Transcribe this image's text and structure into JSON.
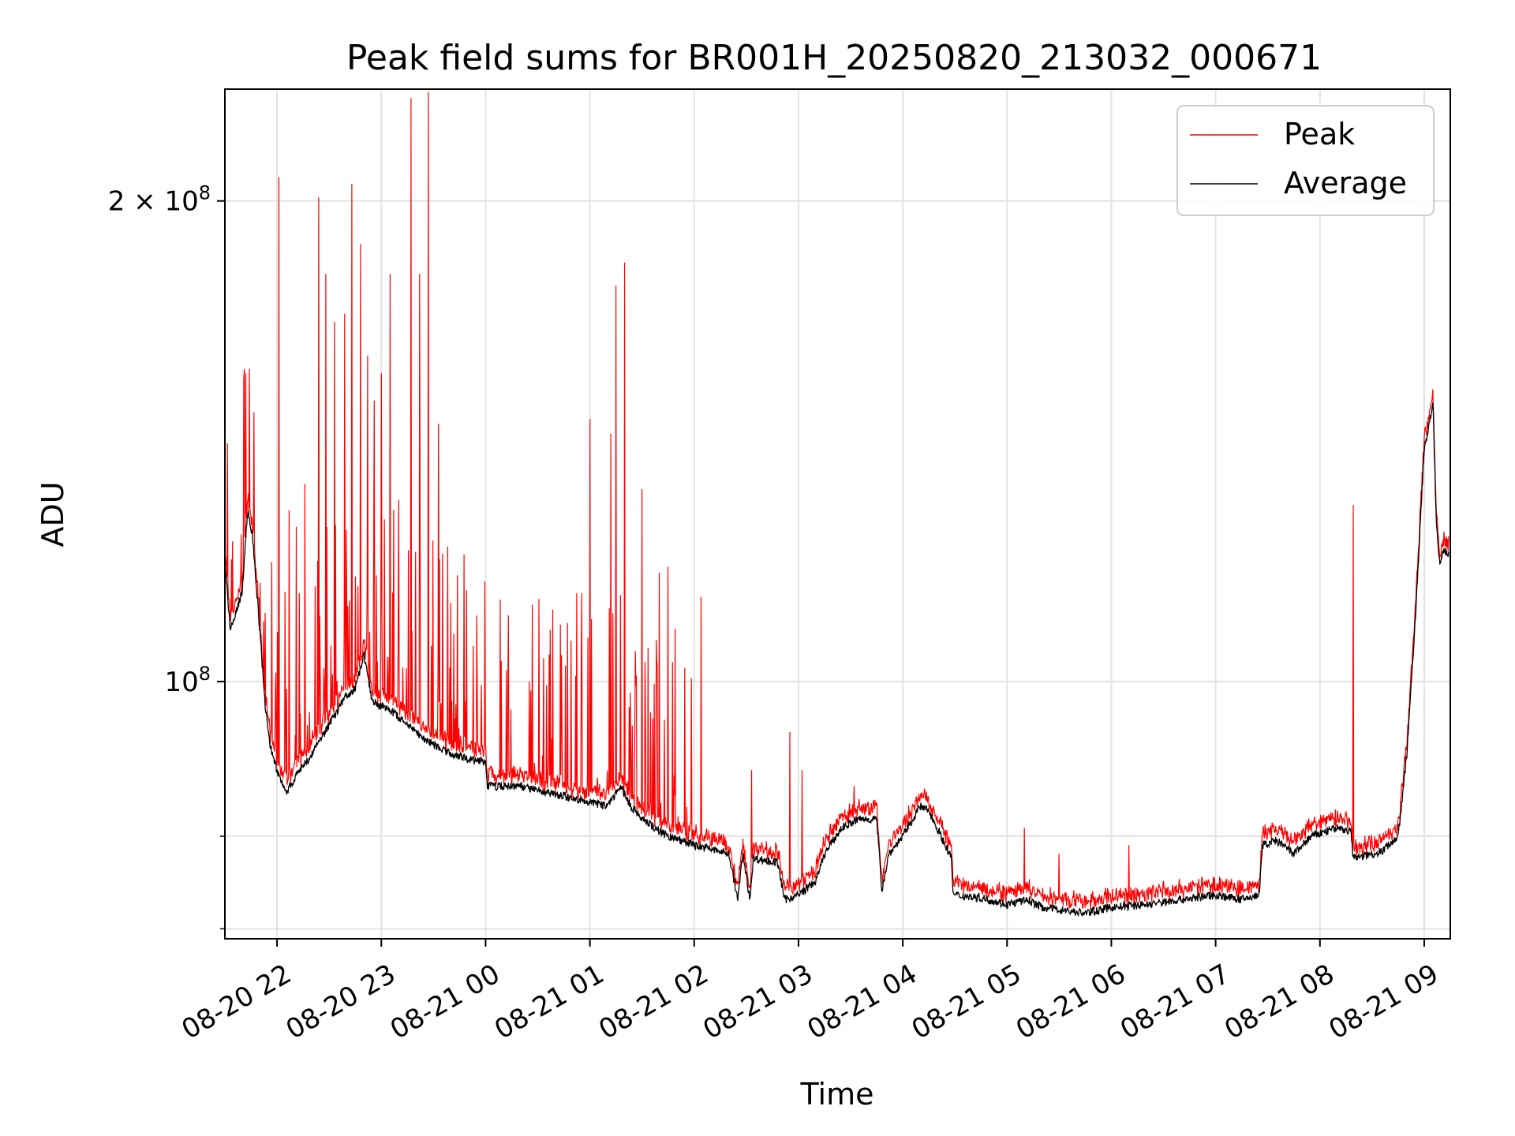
{
  "chart_data": {
    "type": "line",
    "title": "Peak field sums for BR001H_20250820_213032_000671",
    "xlabel": "Time",
    "ylabel": "ADU",
    "x_scale": "time",
    "y_scale": "log",
    "ylim": [
      69000000,
      235000000
    ],
    "xlim": [
      "2025-08-20 21:30",
      "2025-08-21 09:15"
    ],
    "x_ticks": [
      {
        "t": "2025-08-20 22:00",
        "label": "08-20 22"
      },
      {
        "t": "2025-08-20 23:00",
        "label": "08-20 23"
      },
      {
        "t": "2025-08-21 00:00",
        "label": "08-21 00"
      },
      {
        "t": "2025-08-21 01:00",
        "label": "08-21 01"
      },
      {
        "t": "2025-08-21 02:00",
        "label": "08-21 02"
      },
      {
        "t": "2025-08-21 03:00",
        "label": "08-21 03"
      },
      {
        "t": "2025-08-21 04:00",
        "label": "08-21 04"
      },
      {
        "t": "2025-08-21 05:00",
        "label": "08-21 05"
      },
      {
        "t": "2025-08-21 06:00",
        "label": "08-21 06"
      },
      {
        "t": "2025-08-21 07:00",
        "label": "08-21 07"
      },
      {
        "t": "2025-08-21 08:00",
        "label": "08-21 08"
      },
      {
        "t": "2025-08-21 09:00",
        "label": "08-21 09"
      }
    ],
    "y_ticks_major": [
      {
        "v": 100000000,
        "base": "10",
        "exp": "8",
        "coef": ""
      },
      {
        "v": 200000000,
        "base": "10",
        "exp": "8",
        "coef": "2 × "
      }
    ],
    "y_ticks_minor": [
      70000000,
      80000000
    ],
    "grid": true,
    "legend": {
      "position": "top-right",
      "entries": [
        "Peak",
        "Average"
      ]
    },
    "colors": {
      "Peak": "#ff0000",
      "Average": "#000000"
    },
    "series": [
      {
        "name": "Average",
        "color": "#000000",
        "points": [
          [
            "2025-08-20 21:30",
            119000000
          ],
          [
            "2025-08-20 21:33",
            108000000
          ],
          [
            "2025-08-20 21:36",
            110000000
          ],
          [
            "2025-08-20 21:40",
            114000000
          ],
          [
            "2025-08-20 21:43",
            128000000
          ],
          [
            "2025-08-20 21:46",
            123000000
          ],
          [
            "2025-08-20 21:50",
            108000000
          ],
          [
            "2025-08-20 21:53",
            97000000
          ],
          [
            "2025-08-20 21:56",
            91000000
          ],
          [
            "2025-08-20 22:00",
            88000000
          ],
          [
            "2025-08-20 22:05",
            85000000
          ],
          [
            "2025-08-20 22:10",
            87000000
          ],
          [
            "2025-08-20 22:20",
            90000000
          ],
          [
            "2025-08-20 22:30",
            94000000
          ],
          [
            "2025-08-20 22:40",
            98000000
          ],
          [
            "2025-08-20 22:45",
            99000000
          ],
          [
            "2025-08-20 22:50",
            104000000
          ],
          [
            "2025-08-20 22:55",
            97000000
          ],
          [
            "2025-08-20 23:05",
            96000000
          ],
          [
            "2025-08-20 23:15",
            94000000
          ],
          [
            "2025-08-20 23:25",
            92000000
          ],
          [
            "2025-08-20 23:40",
            90000000
          ],
          [
            "2025-08-21 00:00",
            89000000
          ],
          [
            "2025-08-21 00:01",
            86000000
          ],
          [
            "2025-08-21 00:20",
            86000000
          ],
          [
            "2025-08-21 00:40",
            85000000
          ],
          [
            "2025-08-21 01:00",
            84000000
          ],
          [
            "2025-08-21 01:10",
            83500000
          ],
          [
            "2025-08-21 01:18",
            86000000
          ],
          [
            "2025-08-21 01:22",
            84000000
          ],
          [
            "2025-08-21 01:30",
            82000000
          ],
          [
            "2025-08-21 01:45",
            80000000
          ],
          [
            "2025-08-21 02:00",
            79000000
          ],
          [
            "2025-08-21 02:20",
            78000000
          ],
          [
            "2025-08-21 02:25",
            73000000
          ],
          [
            "2025-08-21 02:28",
            78000000
          ],
          [
            "2025-08-21 02:32",
            73000000
          ],
          [
            "2025-08-21 02:34",
            77500000
          ],
          [
            "2025-08-21 02:48",
            77000000
          ],
          [
            "2025-08-21 02:52",
            73000000
          ],
          [
            "2025-08-21 03:00",
            73500000
          ],
          [
            "2025-08-21 03:10",
            75000000
          ],
          [
            "2025-08-21 03:15",
            78000000
          ],
          [
            "2025-08-21 03:25",
            81000000
          ],
          [
            "2025-08-21 03:35",
            82000000
          ],
          [
            "2025-08-21 03:45",
            82000000
          ],
          [
            "2025-08-21 03:48",
            74000000
          ],
          [
            "2025-08-21 03:52",
            78000000
          ],
          [
            "2025-08-21 04:00",
            80000000
          ],
          [
            "2025-08-21 04:10",
            83500000
          ],
          [
            "2025-08-21 04:15",
            83000000
          ],
          [
            "2025-08-21 04:22",
            80000000
          ],
          [
            "2025-08-21 04:28",
            77500000
          ],
          [
            "2025-08-21 04:29",
            73500000
          ],
          [
            "2025-08-21 04:45",
            73200000
          ],
          [
            "2025-08-21 05:00",
            72500000
          ],
          [
            "2025-08-21 05:12",
            73000000
          ],
          [
            "2025-08-21 05:20",
            72200000
          ],
          [
            "2025-08-21 05:45",
            71600000
          ],
          [
            "2025-08-21 06:00",
            72200000
          ],
          [
            "2025-08-21 06:20",
            72500000
          ],
          [
            "2025-08-21 06:40",
            73000000
          ],
          [
            "2025-08-21 07:00",
            73500000
          ],
          [
            "2025-08-21 07:15",
            73000000
          ],
          [
            "2025-08-21 07:25",
            73500000
          ],
          [
            "2025-08-21 07:27",
            79000000
          ],
          [
            "2025-08-21 07:35",
            79500000
          ],
          [
            "2025-08-21 07:45",
            78000000
          ],
          [
            "2025-08-21 07:55",
            80000000
          ],
          [
            "2025-08-21 08:10",
            81000000
          ],
          [
            "2025-08-21 08:18",
            80500000
          ],
          [
            "2025-08-21 08:19",
            77500000
          ],
          [
            "2025-08-21 08:35",
            78200000
          ],
          [
            "2025-08-21 08:45",
            80000000
          ],
          [
            "2025-08-21 08:50",
            90000000
          ],
          [
            "2025-08-21 08:55",
            110000000
          ],
          [
            "2025-08-21 09:00",
            140000000
          ],
          [
            "2025-08-21 09:03",
            145000000
          ],
          [
            "2025-08-21 09:05",
            150000000
          ],
          [
            "2025-08-21 09:07",
            125000000
          ],
          [
            "2025-08-21 09:09",
            118000000
          ],
          [
            "2025-08-21 09:11",
            121000000
          ],
          [
            "2025-08-21 09:14",
            120000000
          ]
        ]
      },
      {
        "name": "Peak",
        "color": "#ff0000",
        "spikes": [
          [
            "2025-08-20 21:44",
            157000000
          ],
          [
            "2025-08-20 22:01",
            207000000
          ],
          [
            "2025-08-20 22:07",
            128000000
          ],
          [
            "2025-08-20 22:11",
            125000000
          ],
          [
            "2025-08-20 22:16",
            133000000
          ],
          [
            "2025-08-20 22:24",
            201000000
          ],
          [
            "2025-08-20 22:28",
            180000000
          ],
          [
            "2025-08-20 22:33",
            168000000
          ],
          [
            "2025-08-20 22:39",
            170000000
          ],
          [
            "2025-08-20 22:43",
            205000000
          ],
          [
            "2025-08-20 22:48",
            188000000
          ],
          [
            "2025-08-20 22:52",
            160000000
          ],
          [
            "2025-08-20 22:56",
            150000000
          ],
          [
            "2025-08-20 23:00",
            156000000
          ],
          [
            "2025-08-20 23:05",
            180000000
          ],
          [
            "2025-08-20 23:10",
            130000000
          ],
          [
            "2025-08-20 23:17",
            232000000
          ],
          [
            "2025-08-20 23:22",
            180000000
          ],
          [
            "2025-08-20 23:27",
            234000000
          ],
          [
            "2025-08-20 23:33",
            145000000
          ],
          [
            "2025-08-20 23:40",
            112000000
          ],
          [
            "2025-08-20 23:55",
            110000000
          ],
          [
            "2025-08-21 00:09",
            103000000
          ],
          [
            "2025-08-21 00:13",
            110000000
          ],
          [
            "2025-08-21 00:25",
            100000000
          ],
          [
            "2025-08-21 00:55",
            104000000
          ],
          [
            "2025-08-21 01:00",
            146000000
          ],
          [
            "2025-08-21 01:12",
            143000000
          ],
          [
            "2025-08-21 01:15",
            177000000
          ],
          [
            "2025-08-21 01:20",
            183000000
          ],
          [
            "2025-08-21 01:30",
            132000000
          ],
          [
            "2025-08-21 01:40",
            117000000
          ],
          [
            "2025-08-21 01:45",
            118000000
          ],
          [
            "2025-08-21 02:04",
            113000000
          ],
          [
            "2025-08-21 02:33",
            88000000
          ],
          [
            "2025-08-21 02:55",
            93000000
          ],
          [
            "2025-08-21 03:02",
            88000000
          ],
          [
            "2025-08-21 03:32",
            86000000
          ],
          [
            "2025-08-21 05:10",
            81000000
          ],
          [
            "2025-08-21 05:30",
            78000000
          ],
          [
            "2025-08-21 06:10",
            79000000
          ],
          [
            "2025-08-21 06:30",
            75000000
          ],
          [
            "2025-08-21 08:10",
            83000000
          ],
          [
            "2025-08-21 08:19",
            129000000
          ]
        ]
      }
    ]
  }
}
